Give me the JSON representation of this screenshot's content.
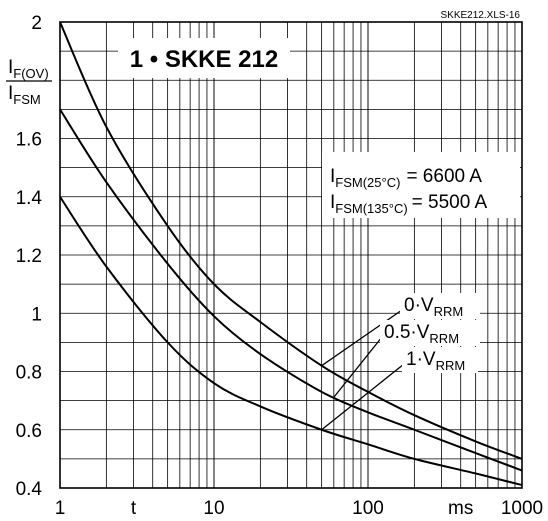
{
  "chart_data": {
    "type": "line",
    "title": "1 • SKKE 212",
    "reference": "SKKE212.XLS-16",
    "ylabel": {
      "num_main": "I",
      "num_sub": "F(OV)",
      "den_main": "I",
      "den_sub": "FSM"
    },
    "xlabel": "t",
    "xunit": "ms",
    "xscale": "log",
    "xlim": [
      1,
      1000
    ],
    "ylim": [
      0.4,
      2.0
    ],
    "grid": true,
    "x_ticks": [
      {
        "value": 1,
        "label": "1"
      },
      {
        "value": 10,
        "label": "10"
      },
      {
        "value": 100,
        "label": "100"
      },
      {
        "value": 1000,
        "label": "1000"
      }
    ],
    "y_ticks": [
      {
        "value": 0.4,
        "label": "0.4"
      },
      {
        "value": 0.6,
        "label": "0.6"
      },
      {
        "value": 0.8,
        "label": "0.8"
      },
      {
        "value": 1.0,
        "label": "1"
      },
      {
        "value": 1.2,
        "label": "1.2"
      },
      {
        "value": 1.4,
        "label": "1.4"
      },
      {
        "value": 1.6,
        "label": "1.6"
      },
      {
        "value": 2.0,
        "label": "2"
      }
    ],
    "series": [
      {
        "name": "0·VRRM",
        "label_main": "0·V",
        "label_sub": "RRM",
        "points": [
          [
            1,
            2.0
          ],
          [
            2,
            1.64
          ],
          [
            5,
            1.3
          ],
          [
            10,
            1.1
          ],
          [
            20,
            0.97
          ],
          [
            50,
            0.82
          ],
          [
            100,
            0.73
          ],
          [
            200,
            0.65
          ],
          [
            500,
            0.56
          ],
          [
            1000,
            0.5
          ]
        ]
      },
      {
        "name": "0.5·VRRM",
        "label_main": "0.5·V",
        "label_sub": "RRM",
        "points": [
          [
            1,
            1.7
          ],
          [
            2,
            1.45
          ],
          [
            5,
            1.17
          ],
          [
            10,
            0.99
          ],
          [
            20,
            0.86
          ],
          [
            50,
            0.73
          ],
          [
            100,
            0.66
          ],
          [
            200,
            0.6
          ],
          [
            500,
            0.52
          ],
          [
            1000,
            0.46
          ]
        ]
      },
      {
        "name": "1·VRRM",
        "label_main": "1·V",
        "label_sub": "RRM",
        "points": [
          [
            1,
            1.4
          ],
          [
            2,
            1.16
          ],
          [
            5,
            0.9
          ],
          [
            10,
            0.76
          ],
          [
            20,
            0.68
          ],
          [
            50,
            0.6
          ],
          [
            100,
            0.55
          ],
          [
            200,
            0.5
          ],
          [
            500,
            0.45
          ],
          [
            1000,
            0.41
          ]
        ]
      }
    ],
    "annotations": [
      {
        "main": "I",
        "sub": "FSM(25°C)",
        "text": "= 6600 A"
      },
      {
        "main": "I",
        "sub": "FSM(135°C)",
        "text": "= 5500 A"
      }
    ]
  }
}
